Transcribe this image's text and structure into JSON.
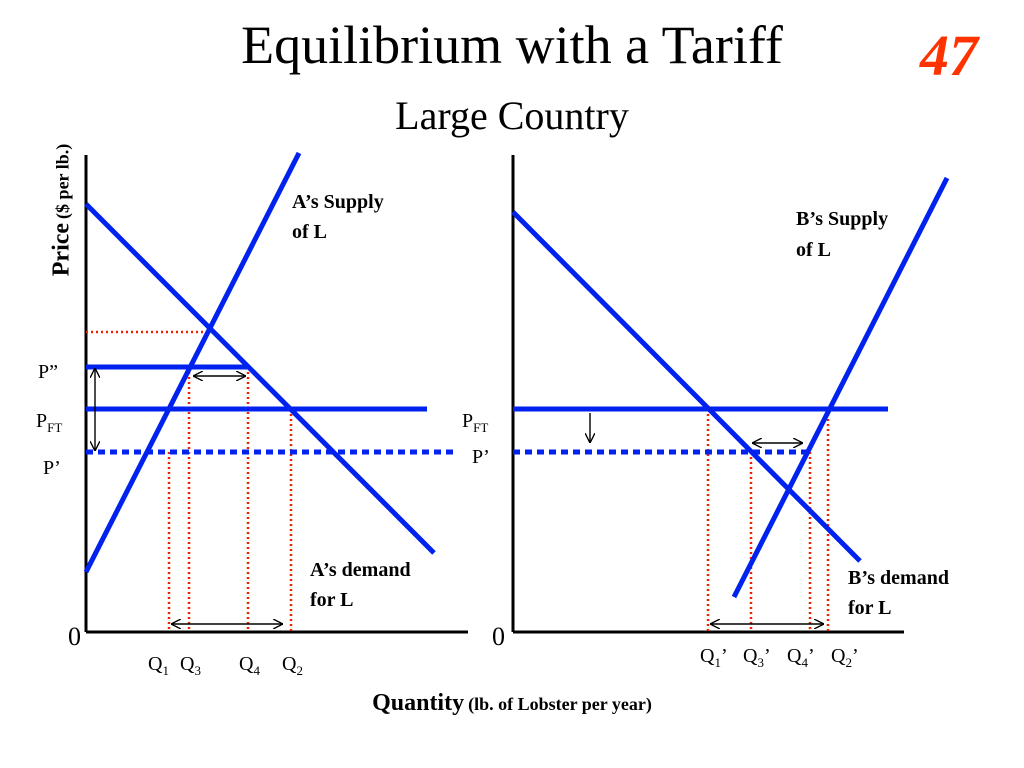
{
  "title": "Equilibrium with a Tariff",
  "subtitle": "Large Country",
  "slide_number": "47",
  "y_axis": {
    "main": "Price",
    "unit": "($ per lb.)"
  },
  "x_axis": {
    "main": "Quantity",
    "unit": "(lb. of Lobster per year)"
  },
  "left_panel": {
    "origin": "0",
    "supply_label_line1": "A’s Supply",
    "supply_label_line2": "of L",
    "demand_label_line1": "A’s demand",
    "demand_label_line2": "for L",
    "price_labels": {
      "p_double": "P”",
      "p_ft_main": "P",
      "p_ft_sub": "FT",
      "p_prime": "P’"
    },
    "quantity_labels": [
      {
        "main": "Q",
        "sub": "1",
        "prime": ""
      },
      {
        "main": "Q",
        "sub": "3",
        "prime": ""
      },
      {
        "main": "Q",
        "sub": "4",
        "prime": ""
      },
      {
        "main": "Q",
        "sub": "2",
        "prime": ""
      }
    ]
  },
  "right_panel": {
    "origin": "0",
    "supply_label_line1": "B’s Supply",
    "supply_label_line2": "of L",
    "demand_label_line1": "B’s demand",
    "demand_label_line2": "for L",
    "price_labels": {
      "p_ft_main": "P",
      "p_ft_sub": "FT",
      "p_prime": "P’"
    },
    "quantity_labels": [
      {
        "main": "Q",
        "sub": "1",
        "prime": "’"
      },
      {
        "main": "Q",
        "sub": "3",
        "prime": "’"
      },
      {
        "main": "Q",
        "sub": "4",
        "prime": "’"
      },
      {
        "main": "Q",
        "sub": "2",
        "prime": "’"
      }
    ]
  },
  "colors": {
    "curve": "#0022ee",
    "guide": "#ee2200",
    "axis": "#000000",
    "slide_number": "#ff3300"
  }
}
